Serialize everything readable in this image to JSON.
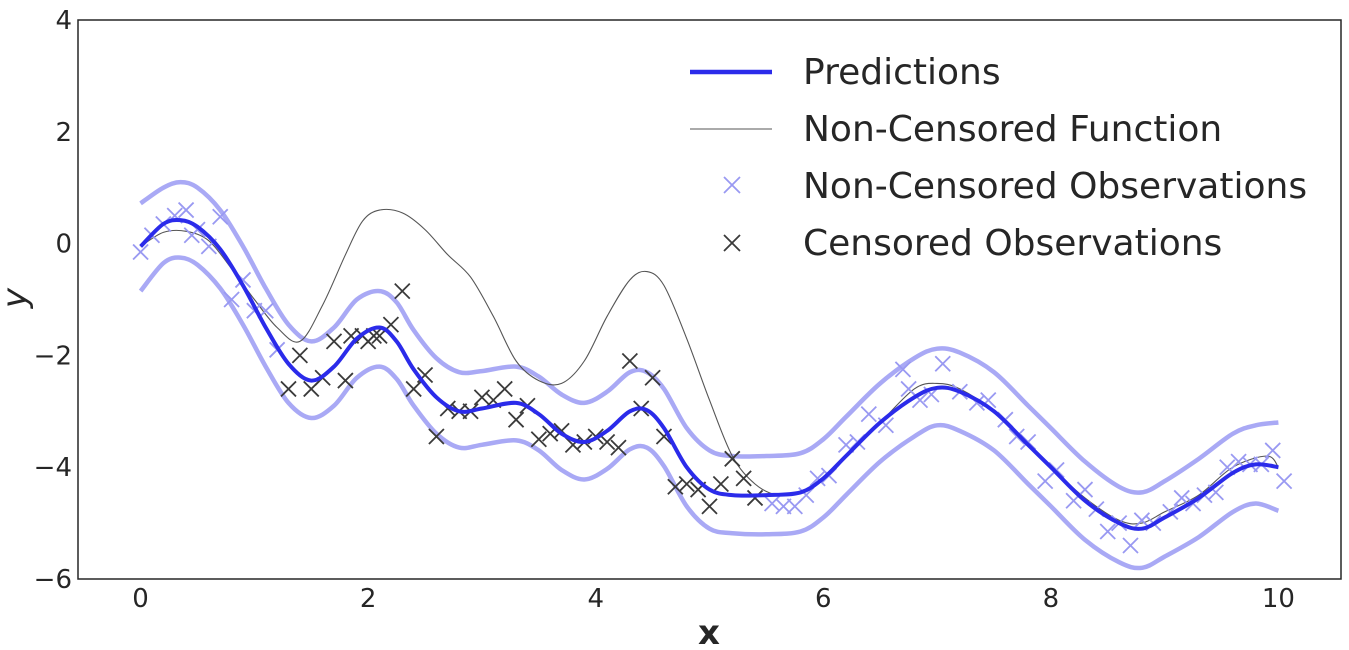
{
  "chart_data": {
    "type": "line",
    "xlabel": "x",
    "ylabel": "y",
    "xlim": [
      -0.55,
      10.55
    ],
    "ylim": [
      -6,
      4
    ],
    "xticks": [
      0,
      2,
      4,
      6,
      8,
      10
    ],
    "yticks": [
      4,
      2,
      0,
      -2,
      -4,
      -6
    ],
    "xtick_labels": [
      "0",
      "2",
      "4",
      "6",
      "8",
      "10"
    ],
    "ytick_labels": [
      "4",
      "2",
      "0",
      "−2",
      "−4",
      "−6"
    ],
    "grid": false,
    "legend_position": "top-right",
    "legend": [
      "Predictions",
      "Non-Censored Function",
      "Non-Censored Observations",
      "Censored Observations"
    ],
    "colors": {
      "prediction": "#2b2bea",
      "band": "#a9a9f5",
      "function": "#555555",
      "noncensored_marker": "#9999f2",
      "censored_marker": "#3a3a3a"
    },
    "series": [
      {
        "name": "Predictions",
        "x": [
          0,
          0.2,
          0.35,
          0.5,
          0.7,
          0.9,
          1.1,
          1.3,
          1.5,
          1.7,
          1.9,
          2.1,
          2.25,
          2.4,
          2.6,
          2.8,
          3.0,
          3.3,
          3.5,
          3.7,
          3.9,
          4.1,
          4.3,
          4.45,
          4.6,
          4.8,
          5.0,
          5.2,
          5.5,
          5.8,
          6.0,
          6.2,
          6.5,
          6.8,
          7.0,
          7.2,
          7.5,
          7.8,
          8.0,
          8.3,
          8.6,
          8.8,
          9.0,
          9.3,
          9.6,
          9.8,
          10.0
        ],
        "y": [
          -0.05,
          0.35,
          0.42,
          0.3,
          -0.1,
          -0.75,
          -1.5,
          -2.15,
          -2.45,
          -2.2,
          -1.7,
          -1.5,
          -1.75,
          -2.25,
          -2.75,
          -3.0,
          -2.95,
          -2.85,
          -3.05,
          -3.4,
          -3.55,
          -3.35,
          -3.0,
          -2.98,
          -3.3,
          -4.0,
          -4.4,
          -4.5,
          -4.5,
          -4.45,
          -4.2,
          -3.8,
          -3.2,
          -2.75,
          -2.58,
          -2.65,
          -3.0,
          -3.6,
          -4.0,
          -4.6,
          -5.0,
          -5.1,
          -4.9,
          -4.55,
          -4.1,
          -3.95,
          -4.0
        ]
      },
      {
        "name": "Non-Censored Function",
        "x": [
          0,
          0.2,
          0.4,
          0.6,
          0.8,
          1.0,
          1.2,
          1.4,
          1.6,
          1.8,
          1.95,
          2.1,
          2.3,
          2.5,
          2.7,
          2.9,
          3.1,
          3.3,
          3.5,
          3.7,
          3.9,
          4.1,
          4.3,
          4.45,
          4.6,
          4.8,
          5.0,
          5.2,
          5.4,
          5.6,
          5.8,
          6.0,
          6.2,
          6.5,
          6.8,
          7.0,
          7.2,
          7.5,
          7.8,
          8.0,
          8.3,
          8.6,
          8.8,
          9.0,
          9.3,
          9.6,
          9.9,
          10.0
        ],
        "y": [
          -0.05,
          0.2,
          0.22,
          0.05,
          -0.45,
          -1.0,
          -1.5,
          -1.75,
          -1.1,
          -0.2,
          0.4,
          0.6,
          0.55,
          0.25,
          -0.2,
          -0.6,
          -1.3,
          -2.1,
          -2.45,
          -2.5,
          -2.1,
          -1.3,
          -0.65,
          -0.5,
          -0.75,
          -1.7,
          -2.8,
          -3.8,
          -4.3,
          -4.5,
          -4.45,
          -4.2,
          -3.8,
          -3.2,
          -2.6,
          -2.5,
          -2.6,
          -3.0,
          -3.6,
          -4.0,
          -4.55,
          -4.95,
          -5.0,
          -4.8,
          -4.5,
          -4.0,
          -3.8,
          -4.0
        ]
      }
    ],
    "band": {
      "x": [
        0,
        0.2,
        0.35,
        0.5,
        0.7,
        0.9,
        1.1,
        1.3,
        1.5,
        1.7,
        1.9,
        2.1,
        2.25,
        2.4,
        2.6,
        2.8,
        3.0,
        3.3,
        3.5,
        3.7,
        3.9,
        4.1,
        4.3,
        4.45,
        4.6,
        4.8,
        5.0,
        5.2,
        5.5,
        5.8,
        6.0,
        6.2,
        6.5,
        6.8,
        7.0,
        7.2,
        7.5,
        7.8,
        8.0,
        8.3,
        8.6,
        8.8,
        9.0,
        9.3,
        9.6,
        9.8,
        10.0
      ],
      "upper": [
        0.72,
        1.0,
        1.1,
        1.0,
        0.6,
        -0.05,
        -0.8,
        -1.45,
        -1.75,
        -1.5,
        -1.0,
        -0.85,
        -1.05,
        -1.55,
        -2.05,
        -2.3,
        -2.28,
        -2.2,
        -2.38,
        -2.7,
        -2.85,
        -2.65,
        -2.3,
        -2.3,
        -2.6,
        -3.3,
        -3.7,
        -3.8,
        -3.8,
        -3.75,
        -3.5,
        -3.1,
        -2.5,
        -2.05,
        -1.88,
        -1.95,
        -2.3,
        -2.9,
        -3.3,
        -3.9,
        -4.35,
        -4.45,
        -4.25,
        -3.85,
        -3.4,
        -3.25,
        -3.2
      ],
      "lower": [
        -0.85,
        -0.35,
        -0.25,
        -0.38,
        -0.8,
        -1.45,
        -2.2,
        -2.85,
        -3.12,
        -2.9,
        -2.4,
        -2.2,
        -2.42,
        -2.9,
        -3.4,
        -3.65,
        -3.6,
        -3.52,
        -3.7,
        -4.05,
        -4.22,
        -4.03,
        -3.68,
        -3.65,
        -3.98,
        -4.7,
        -5.1,
        -5.18,
        -5.2,
        -5.15,
        -4.9,
        -4.5,
        -3.9,
        -3.45,
        -3.25,
        -3.35,
        -3.7,
        -4.3,
        -4.7,
        -5.3,
        -5.7,
        -5.8,
        -5.6,
        -5.25,
        -4.8,
        -4.65,
        -4.78
      ]
    },
    "noncensored_observations": {
      "x": [
        0.0,
        0.1,
        0.2,
        0.3,
        0.4,
        0.45,
        0.5,
        0.6,
        0.7,
        0.8,
        0.9,
        1.0,
        1.1,
        1.2,
        5.55,
        5.65,
        5.75,
        5.85,
        5.95,
        6.05,
        6.2,
        6.3,
        6.4,
        6.55,
        6.7,
        6.75,
        6.85,
        6.95,
        7.05,
        7.2,
        7.35,
        7.45,
        7.6,
        7.7,
        7.8,
        7.95,
        8.05,
        8.2,
        8.3,
        8.4,
        8.5,
        8.6,
        8.7,
        8.8,
        8.9,
        9.05,
        9.15,
        9.25,
        9.35,
        9.45,
        9.55,
        9.65,
        9.75,
        9.85,
        9.95,
        10.05
      ],
      "y": [
        -0.15,
        0.15,
        0.35,
        0.5,
        0.6,
        0.15,
        0.25,
        -0.05,
        0.48,
        -1.0,
        -0.65,
        -1.2,
        -1.2,
        -1.9,
        -4.65,
        -4.7,
        -4.7,
        -4.5,
        -4.2,
        -4.15,
        -3.6,
        -3.55,
        -3.05,
        -3.25,
        -2.25,
        -2.6,
        -2.8,
        -2.7,
        -2.15,
        -2.65,
        -2.85,
        -2.8,
        -3.15,
        -3.45,
        -3.55,
        -4.25,
        -4.05,
        -4.6,
        -4.4,
        -4.75,
        -5.15,
        -5.0,
        -5.4,
        -4.95,
        -5.0,
        -4.8,
        -4.55,
        -4.65,
        -4.5,
        -4.45,
        -4.0,
        -3.9,
        -3.95,
        -3.95,
        -3.7,
        -4.25
      ]
    },
    "censored_observations": {
      "x": [
        1.3,
        1.4,
        1.5,
        1.6,
        1.7,
        1.8,
        1.85,
        1.95,
        2.0,
        2.05,
        2.1,
        2.2,
        2.3,
        2.4,
        2.5,
        2.6,
        2.7,
        2.8,
        2.9,
        3.0,
        3.1,
        3.2,
        3.3,
        3.4,
        3.5,
        3.6,
        3.7,
        3.8,
        3.9,
        4.0,
        4.1,
        4.2,
        4.3,
        4.4,
        4.5,
        4.6,
        4.7,
        4.8,
        4.9,
        5.0,
        5.1,
        5.2,
        5.3,
        5.4
      ],
      "y": [
        -2.6,
        -2.0,
        -2.6,
        -2.4,
        -1.75,
        -2.45,
        -1.65,
        -1.65,
        -1.75,
        -1.65,
        -1.65,
        -1.45,
        -0.85,
        -2.6,
        -2.35,
        -3.45,
        -2.95,
        -3.0,
        -3.0,
        -2.75,
        -2.8,
        -2.6,
        -3.15,
        -2.9,
        -3.5,
        -3.4,
        -3.35,
        -3.6,
        -3.55,
        -3.45,
        -3.55,
        -3.65,
        -2.1,
        -2.95,
        -2.4,
        -3.45,
        -4.35,
        -4.3,
        -4.4,
        -4.7,
        -4.3,
        -3.85,
        -4.2,
        -4.55
      ]
    }
  }
}
